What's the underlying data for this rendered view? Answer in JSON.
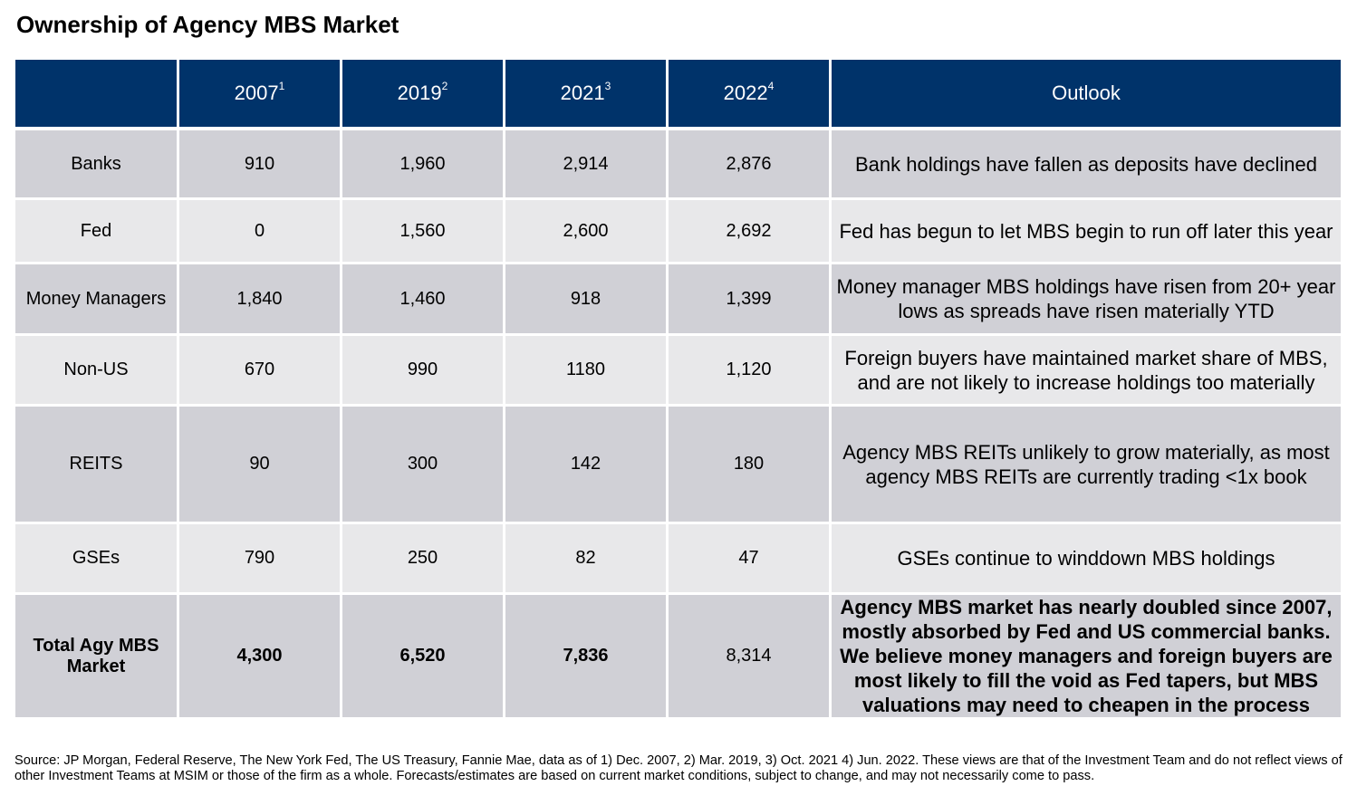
{
  "title": "Ownership of Agency MBS Market",
  "table": {
    "headers": [
      {
        "year": "",
        "sup": ""
      },
      {
        "year": "2007",
        "sup": "1"
      },
      {
        "year": "2019",
        "sup": "2"
      },
      {
        "year": "2021",
        "sup": "3"
      },
      {
        "year": "2022",
        "sup": "4"
      },
      {
        "year": "Outlook",
        "sup": ""
      }
    ],
    "rows": [
      {
        "label": "Banks",
        "v2007": "910",
        "v2019": "1,960",
        "v2021": "2,914",
        "v2022": "2,876",
        "outlook": "Bank holdings have fallen as deposits have declined"
      },
      {
        "label": "Fed",
        "v2007": "0",
        "v2019": "1,560",
        "v2021": "2,600",
        "v2022": "2,692",
        "outlook": "Fed has begun to let MBS begin to run off later this year"
      },
      {
        "label": "Money Managers",
        "v2007": "1,840",
        "v2019": "1,460",
        "v2021": "918",
        "v2022": "1,399",
        "outlook": "Money manager MBS holdings have risen from 20+ year lows as spreads have risen materially YTD"
      },
      {
        "label": "Non-US",
        "v2007": "670",
        "v2019": "990",
        "v2021": "1180",
        "v2022": "1,120",
        "outlook": "Foreign buyers have maintained market share of MBS, and are not likely to increase holdings too materially"
      },
      {
        "label": "REITS",
        "v2007": "90",
        "v2019": "300",
        "v2021": "142",
        "v2022": "180",
        "outlook": "Agency MBS REITs unlikely to grow materially, as most agency MBS REITs are currently trading <1x book"
      },
      {
        "label": "GSEs",
        "v2007": "790",
        "v2019": "250",
        "v2021": "82",
        "v2022": "47",
        "outlook": "GSEs continue to winddown MBS holdings"
      },
      {
        "label": "Total Agy MBS Market",
        "v2007": "4,300",
        "v2019": "6,520",
        "v2021": "7,836",
        "v2022": "8,314",
        "outlook": "Agency MBS market has nearly doubled since 2007, mostly absorbed by Fed and US commercial banks. We believe money managers and foreign buyers are most likely to fill the void as Fed tapers, but MBS valuations may need to cheapen in the process"
      }
    ]
  },
  "source": "Source: JP Morgan, Federal Reserve, The New York Fed, The US Treasury, Fannie Mae, data as of 1) Dec. 2007, 2) Mar. 2019, 3) Oct. 2021 4) Jun. 2022. These views are that of the Investment Team and do not reflect views of other Investment Teams at MSIM or those of the firm as a whole. Forecasts/estimates are based on current market conditions, subject to change, and may not necessarily come to pass."
}
